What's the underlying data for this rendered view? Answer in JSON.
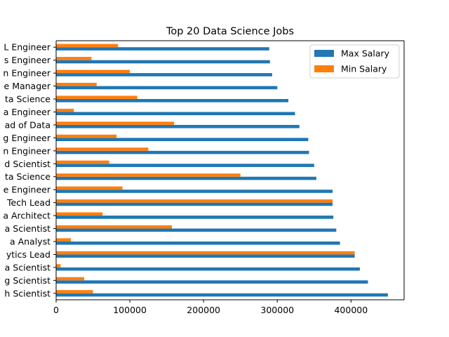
{
  "chart_data": {
    "type": "bar",
    "orientation": "horizontal",
    "title": "Top 20 Data Science Jobs",
    "xlabel": "",
    "ylabel": "",
    "xlim": [
      0,
      472000
    ],
    "xticks": [
      0,
      100000,
      200000,
      300000,
      400000
    ],
    "xtick_labels": [
      "0",
      "100000",
      "200000",
      "300000",
      "400000"
    ],
    "grid": false,
    "legend_position": "top-right",
    "categories": [
      "Research Scientist",
      "Machine Learning Scientist",
      "Principal Data Scientist",
      "Analytics Lead",
      "Data Analyst",
      "Data Scientist",
      "Data Architect",
      "Tech Lead",
      "Machine Learning Software Engineer",
      "Director of Data Science",
      "Applied Scientist",
      "Computer Vision Engineer",
      "Machine Learning Engineer",
      "Head of Data",
      "Data Engineer",
      "Head of Data Science",
      "Data Science Manager",
      "Computer Vision Engineer",
      "Analytics Engineer",
      "ML Engineer"
    ],
    "category_labels_visible": [
      "h Scientist",
      "g Scientist",
      "a Scientist",
      "ytics Lead",
      "a Analyst",
      "a Scientist",
      "a Architect",
      "Tech Lead",
      "e Engineer",
      "ta Science",
      "d Scientist",
      "n Engineer",
      "g Engineer",
      "ad of Data",
      "a Engineer",
      "ta Science",
      "e Manager",
      "n Engineer",
      "s Engineer",
      "L Engineer"
    ],
    "series": [
      {
        "name": "Max Salary",
        "color": "#1f77b4",
        "values": [
          450000,
          423000,
          412000,
          405000,
          385000,
          380000,
          376000,
          375000,
          375000,
          353000,
          350000,
          343000,
          342000,
          330000,
          324000,
          315000,
          300000,
          293000,
          290000,
          289000
        ]
      },
      {
        "name": "Min Salary",
        "color": "#ff7f0e",
        "values": [
          50000,
          38000,
          6000,
          405000,
          20000,
          157000,
          63000,
          375000,
          90000,
          250000,
          72000,
          125000,
          82000,
          160000,
          24000,
          110000,
          55000,
          100000,
          48000,
          84000
        ]
      }
    ]
  }
}
